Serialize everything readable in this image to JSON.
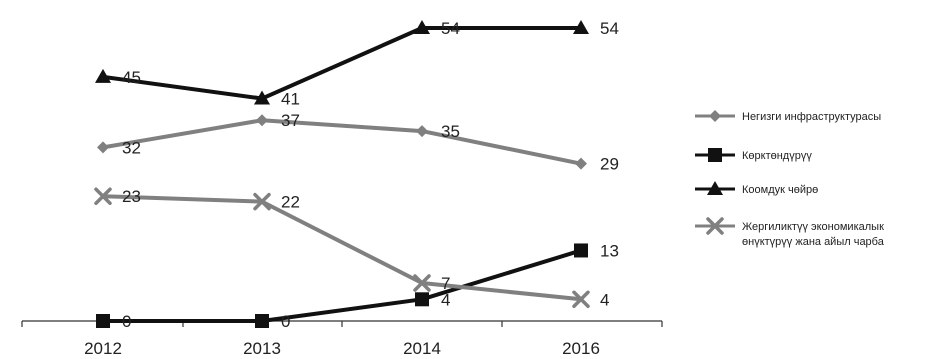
{
  "chart_data": {
    "type": "line",
    "categories": [
      "2012",
      "2013",
      "2014",
      "2016"
    ],
    "ylim": [
      0,
      60
    ],
    "grid": false,
    "legend_position": "right",
    "series": [
      {
        "name": "Негизги инфраструктурасы",
        "values": [
          32,
          37,
          35,
          29
        ],
        "labels": [
          "32",
          "37",
          "35",
          "29"
        ],
        "color": "#808080",
        "marker": "diamond"
      },
      {
        "name": "Көрктөндүрүү",
        "values": [
          0,
          0,
          4,
          13
        ],
        "labels": [
          "0",
          "0",
          "4",
          "13"
        ],
        "color": "#111111",
        "marker": "square"
      },
      {
        "name": "Коомдук чөйрө",
        "values": [
          45,
          41,
          54,
          54
        ],
        "labels": [
          "45",
          "41",
          "54",
          "54"
        ],
        "color": "#111111",
        "marker": "triangle"
      },
      {
        "name": "Жергиликтүү экономикалык өнүктүрүү жана айыл чарба",
        "name_lines": [
          "Жергиликтүү экономикалык",
          "өнүктүрүү жана айыл чарба"
        ],
        "values": [
          23,
          22,
          7,
          4
        ],
        "labels": [
          "23",
          "22",
          "7",
          "4"
        ],
        "color": "#808080",
        "marker": "x"
      }
    ]
  }
}
